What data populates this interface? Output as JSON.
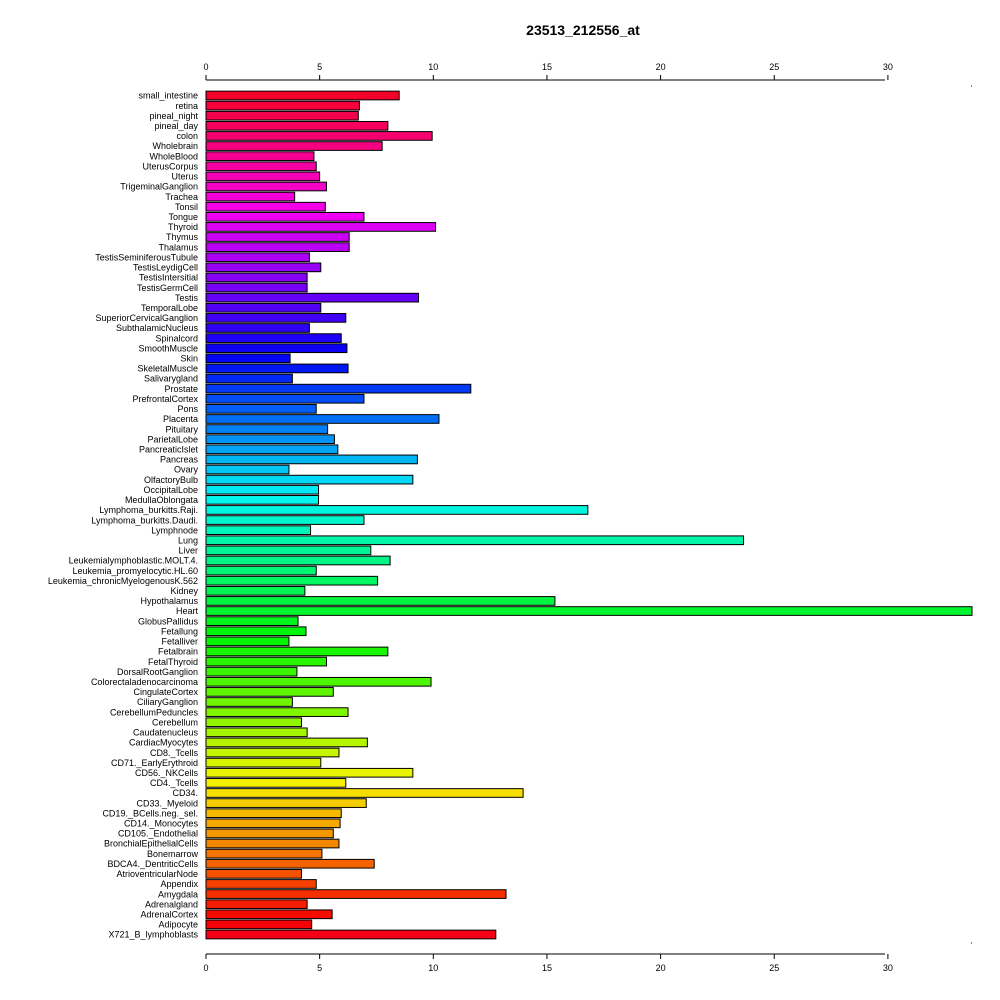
{
  "chart_data": {
    "type": "bar",
    "orientation": "horizontal",
    "title": "23513_212556_at",
    "xlabel": "",
    "ylabel": "",
    "xlim": [
      0,
      33.7
    ],
    "xticks": [
      0,
      5,
      10,
      15,
      20,
      25,
      30
    ],
    "grid": false,
    "legend": "none",
    "categories": [
      "small_intestine",
      "retina",
      "pineal_night",
      "pineal_day",
      "colon",
      "Wholebrain",
      "WholeBlood",
      "UterusCorpus",
      "Uterus",
      "TrigeminalGanglion",
      "Trachea",
      "Tonsil",
      "Tongue",
      "Thyroid",
      "Thymus",
      "Thalamus",
      "TestisSeminiferousTubule",
      "TestisLeydigCell",
      "TestisIntersitial",
      "TestisGermCell",
      "Testis",
      "TemporalLobe",
      "SuperiorCervicalGanglion",
      "SubthalamicNucleus",
      "Spinalcord",
      "SmoothMuscle",
      "Skin",
      "SkeletalMuscle",
      "Salivarygland",
      "Prostate",
      "PrefrontalCortex",
      "Pons",
      "Placenta",
      "Pituitary",
      "ParietalLobe",
      "PancreaticIslet",
      "Pancreas",
      "Ovary",
      "OlfactoryBulb",
      "OccipitalLobe",
      "MedullaOblongata",
      "Lymphoma_burkitts.Raji.",
      "Lymphoma_burkitts.Daudi.",
      "Lymphnode",
      "Lung",
      "Liver",
      "Leukemialymphoblastic.MOLT.4.",
      "Leukemia_promyelocytic.HL.60",
      "Leukemia_chronicMyelogenousK.562",
      "Kidney",
      "Hypothalamus",
      "Heart",
      "GlobusPallidus",
      "Fetallung",
      "Fetalliver",
      "Fetalbrain",
      "FetalThyroid",
      "DorsalRootGanglion",
      "Colorectaladenocarcinoma",
      "CingulateCortex",
      "CiliaryGanglion",
      "CerebellumPeduncles",
      "Cerebellum",
      "Caudatenucleus",
      "CardiacMyocytes",
      "CD8._Tcells",
      "CD71._EarlyErythroid",
      "CD56._NKCells",
      "CD4._Tcells",
      "CD34.",
      "CD33._Myeloid",
      "CD19._BCells.neg._sel.",
      "CD14._Monocytes",
      "CD105._Endothelial",
      "BronchialEpithelialCells",
      "Bonemarrow",
      "BDCA4._DentriticCells",
      "AtrioventricularNode",
      "Appendix",
      "Amygdala",
      "Adrenalgland",
      "AdrenalCortex",
      "Adipocyte",
      "X721_B_lymphoblasts"
    ],
    "values": [
      8.5,
      6.75,
      6.7,
      8.0,
      9.95,
      7.75,
      4.75,
      4.85,
      5.0,
      5.3,
      3.9,
      5.25,
      6.95,
      10.1,
      6.3,
      6.3,
      4.55,
      5.05,
      4.45,
      4.45,
      9.35,
      5.05,
      6.15,
      4.55,
      5.95,
      6.2,
      3.7,
      6.25,
      3.8,
      11.65,
      6.95,
      4.85,
      10.25,
      5.35,
      5.65,
      5.8,
      9.3,
      3.65,
      9.1,
      4.95,
      4.95,
      16.8,
      6.95,
      4.6,
      23.65,
      7.25,
      8.1,
      4.85,
      7.55,
      4.35,
      15.35,
      33.7,
      4.05,
      4.4,
      3.65,
      8.0,
      5.3,
      4.0,
      9.9,
      5.6,
      3.8,
      6.25,
      4.2,
      4.45,
      7.1,
      5.85,
      5.05,
      9.1,
      6.15,
      13.95,
      7.05,
      5.95,
      5.9,
      5.6,
      5.85,
      5.1,
      7.4,
      4.2,
      4.85,
      13.2,
      4.45,
      5.55,
      4.65,
      12.75
    ]
  }
}
